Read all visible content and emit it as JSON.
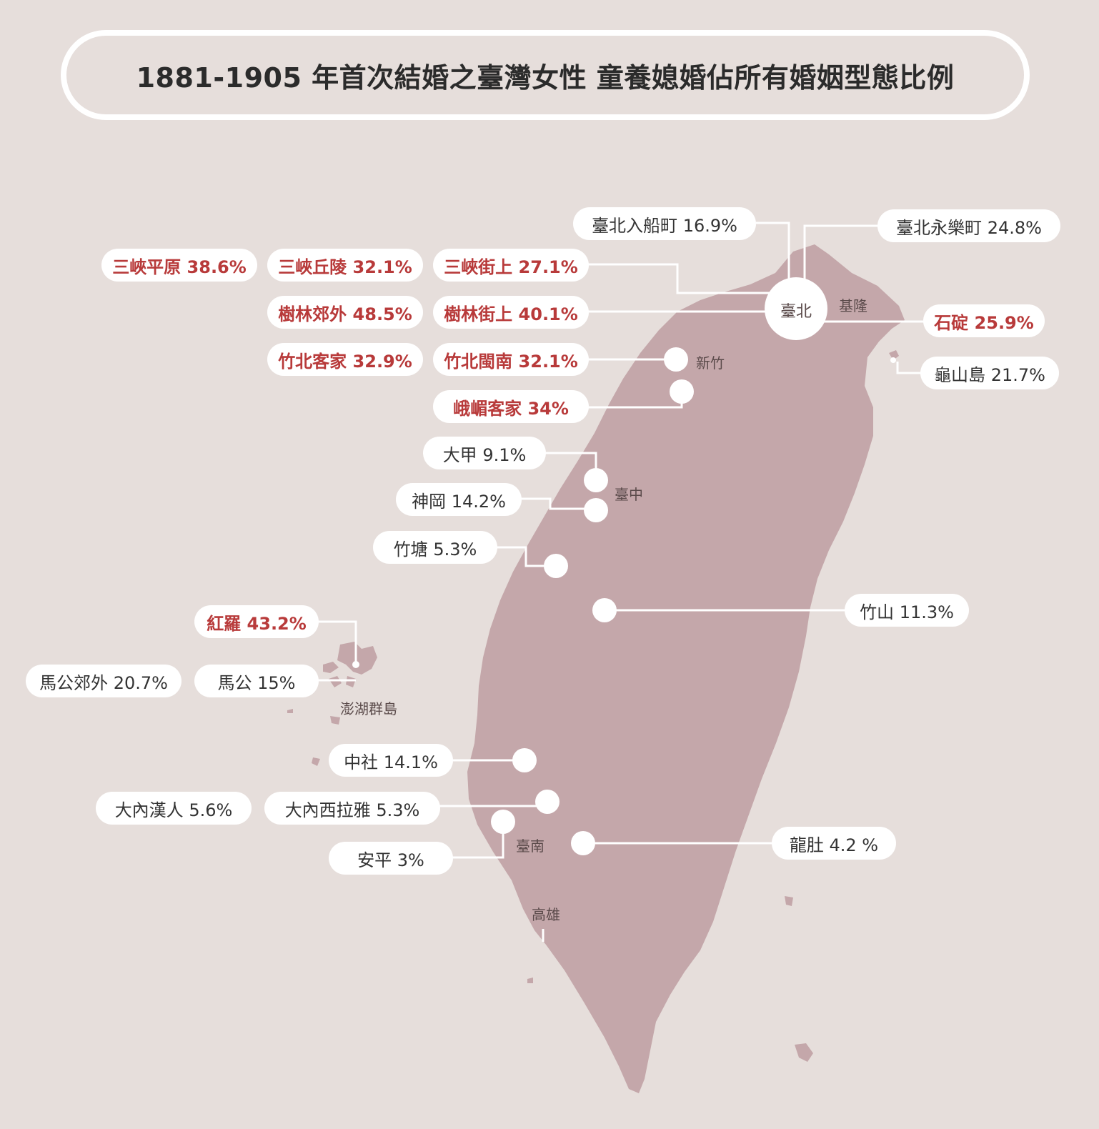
{
  "title": "1881-1905 年首次結婚之臺灣女性  童養媳婚佔所有婚姻型態比例",
  "colors": {
    "background": "#e6dedb",
    "land": "#c4a7aa",
    "label_bg": "#ffffff",
    "text": "#333333",
    "highlight_text": "#b83a3a",
    "connector": "#ffffff"
  },
  "places": {
    "taipei": "臺北",
    "keelung": "基隆",
    "hsinchu": "新竹",
    "taichung": "臺中",
    "penghu": "澎湖群島",
    "tainan": "臺南",
    "kaohsiung": "高雄"
  },
  "labels": {
    "taipei_chuanchuan": "臺北入船町 16.9%",
    "taipei_yongle": "臺北永樂町 24.8%",
    "sanxia_plain": "三峽平原 38.6%",
    "sanxia_hill": "三峽丘陵 32.1%",
    "sanxia_street": "三峽街上 27.1%",
    "shulin_suburb": "樹林郊外 48.5%",
    "shulin_street": "樹林街上 40.1%",
    "shiding": "石碇 25.9%",
    "zhubei_hakka": "竹北客家 32.9%",
    "zhubei_minnan": "竹北閩南 32.1%",
    "guishan_island": "龜山島 21.7%",
    "emei_hakka": "峨嵋客家 34%",
    "dajia": "大甲 9.1%",
    "shengang": "神岡 14.2%",
    "zhutang": "竹塘 5.3%",
    "zhushan": "竹山 11.3%",
    "hongluo": "紅羅 43.2%",
    "magong_suburb": "馬公郊外 20.7%",
    "magong": "馬公 15%",
    "zhongshe": "中社 14.1%",
    "danei_han": "大內漢人 5.6%",
    "danei_siraya": "大內西拉雅 5.3%",
    "anping": "安平 3%",
    "longdu": "龍肚 4.2 %"
  },
  "values": {
    "taipei_chuanchuan": 16.9,
    "taipei_yongle": 24.8,
    "sanxia_plain": 38.6,
    "sanxia_hill": 32.1,
    "sanxia_street": 27.1,
    "shulin_suburb": 48.5,
    "shulin_street": 40.1,
    "shiding": 25.9,
    "zhubei_hakka": 32.9,
    "zhubei_minnan": 32.1,
    "guishan_island": 21.7,
    "emei_hakka": 34,
    "dajia": 9.1,
    "shengang": 14.2,
    "zhutang": 5.3,
    "zhushan": 11.3,
    "hongluo": 43.2,
    "magong_suburb": 20.7,
    "magong": 15,
    "zhongshe": 14.1,
    "danei_han": 5.6,
    "danei_siraya": 5.3,
    "anping": 3,
    "longdu": 4.2
  }
}
